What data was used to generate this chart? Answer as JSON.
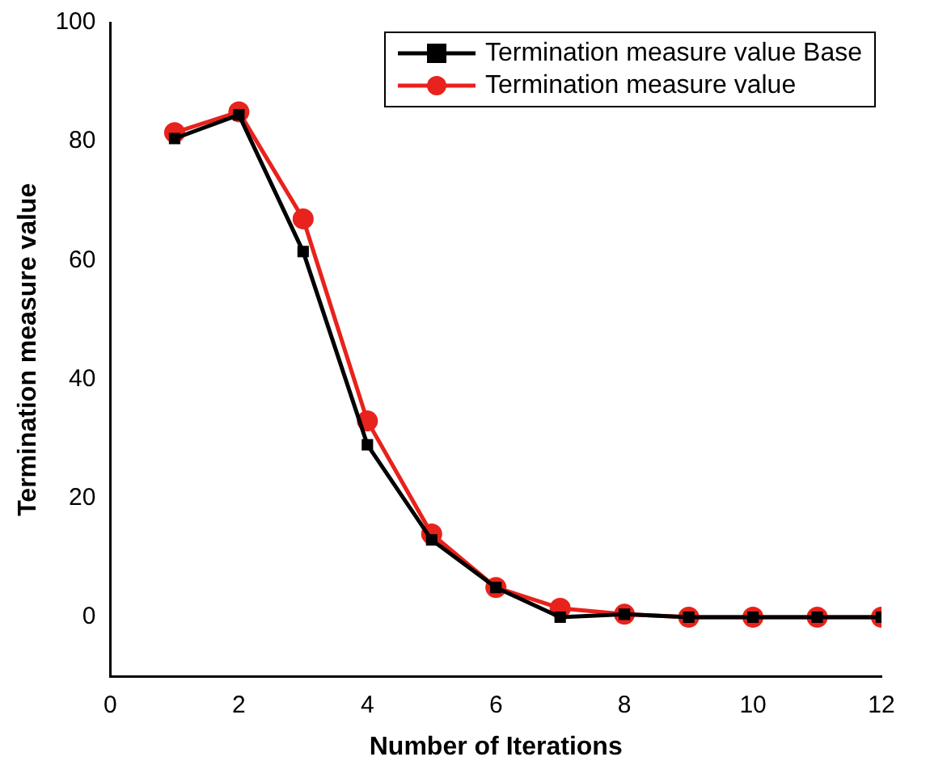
{
  "chart_data": {
    "type": "line",
    "xlabel": "Number of Iterations",
    "ylabel": "Termination measure value",
    "x": [
      1,
      2,
      3,
      4,
      5,
      6,
      7,
      8,
      9,
      10,
      11,
      12
    ],
    "series": [
      {
        "name": "Termination measure value Base",
        "color": "#000000",
        "marker": "square",
        "values": [
          80.5,
          84.5,
          61.5,
          29,
          13,
          5,
          0,
          0.5,
          0,
          0,
          0,
          0
        ]
      },
      {
        "name": "Termination measure value",
        "color": "#e8221c",
        "marker": "circle",
        "values": [
          81.5,
          85,
          67,
          33,
          14,
          5,
          1.5,
          0.5,
          0,
          0,
          0,
          0
        ]
      }
    ],
    "xlim": [
      0,
      12
    ],
    "xticks": [
      0,
      2,
      4,
      6,
      8,
      10,
      12
    ],
    "ylim": [
      -10,
      100
    ],
    "yticks": [
      0,
      20,
      40,
      60,
      80,
      100
    ],
    "grid": false,
    "legend": "top right",
    "line_style": "solid"
  }
}
